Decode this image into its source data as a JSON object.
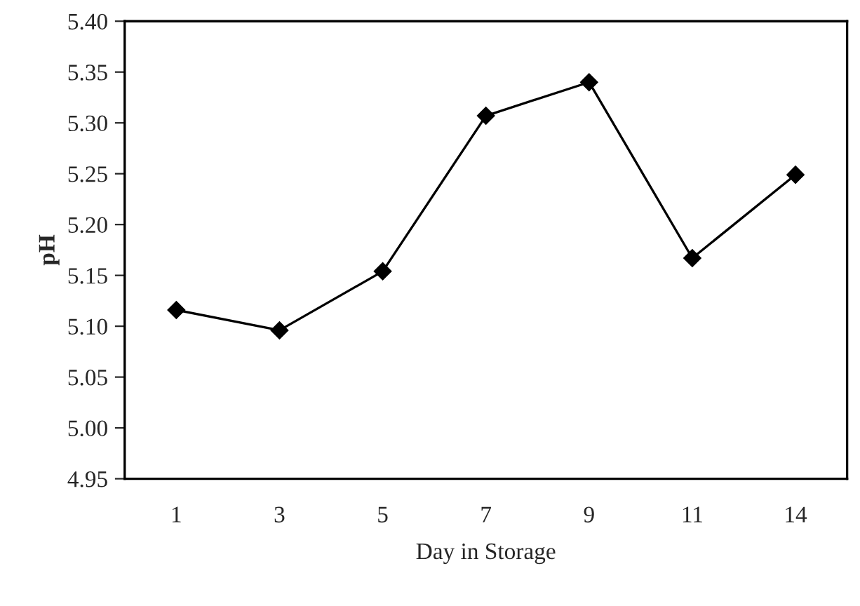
{
  "chart_data": {
    "type": "line",
    "xlabel": "Day in Storage",
    "ylabel": "pH",
    "categories": [
      "1",
      "3",
      "5",
      "7",
      "9",
      "11",
      "14"
    ],
    "series": [
      {
        "color": "#000000",
        "values": [
          5.116,
          5.096,
          5.154,
          5.307,
          5.34,
          5.167,
          5.249
        ]
      }
    ],
    "ylim": [
      4.95,
      5.4
    ],
    "yticks": [
      {
        "value": 4.95,
        "label": "4.95"
      },
      {
        "value": 5.0,
        "label": "5.00"
      },
      {
        "value": 5.05,
        "label": "5.05"
      },
      {
        "value": 5.1,
        "label": "5.10"
      },
      {
        "value": 5.15,
        "label": "5.15"
      },
      {
        "value": 5.2,
        "label": "5.20"
      },
      {
        "value": 5.25,
        "label": "5.25"
      },
      {
        "value": 5.3,
        "label": "5.30"
      },
      {
        "value": 5.35,
        "label": "5.35"
      },
      {
        "value": 5.4,
        "label": "5.40"
      }
    ],
    "marker": "diamond",
    "line_style": "solid",
    "grid": false,
    "legend": false
  }
}
